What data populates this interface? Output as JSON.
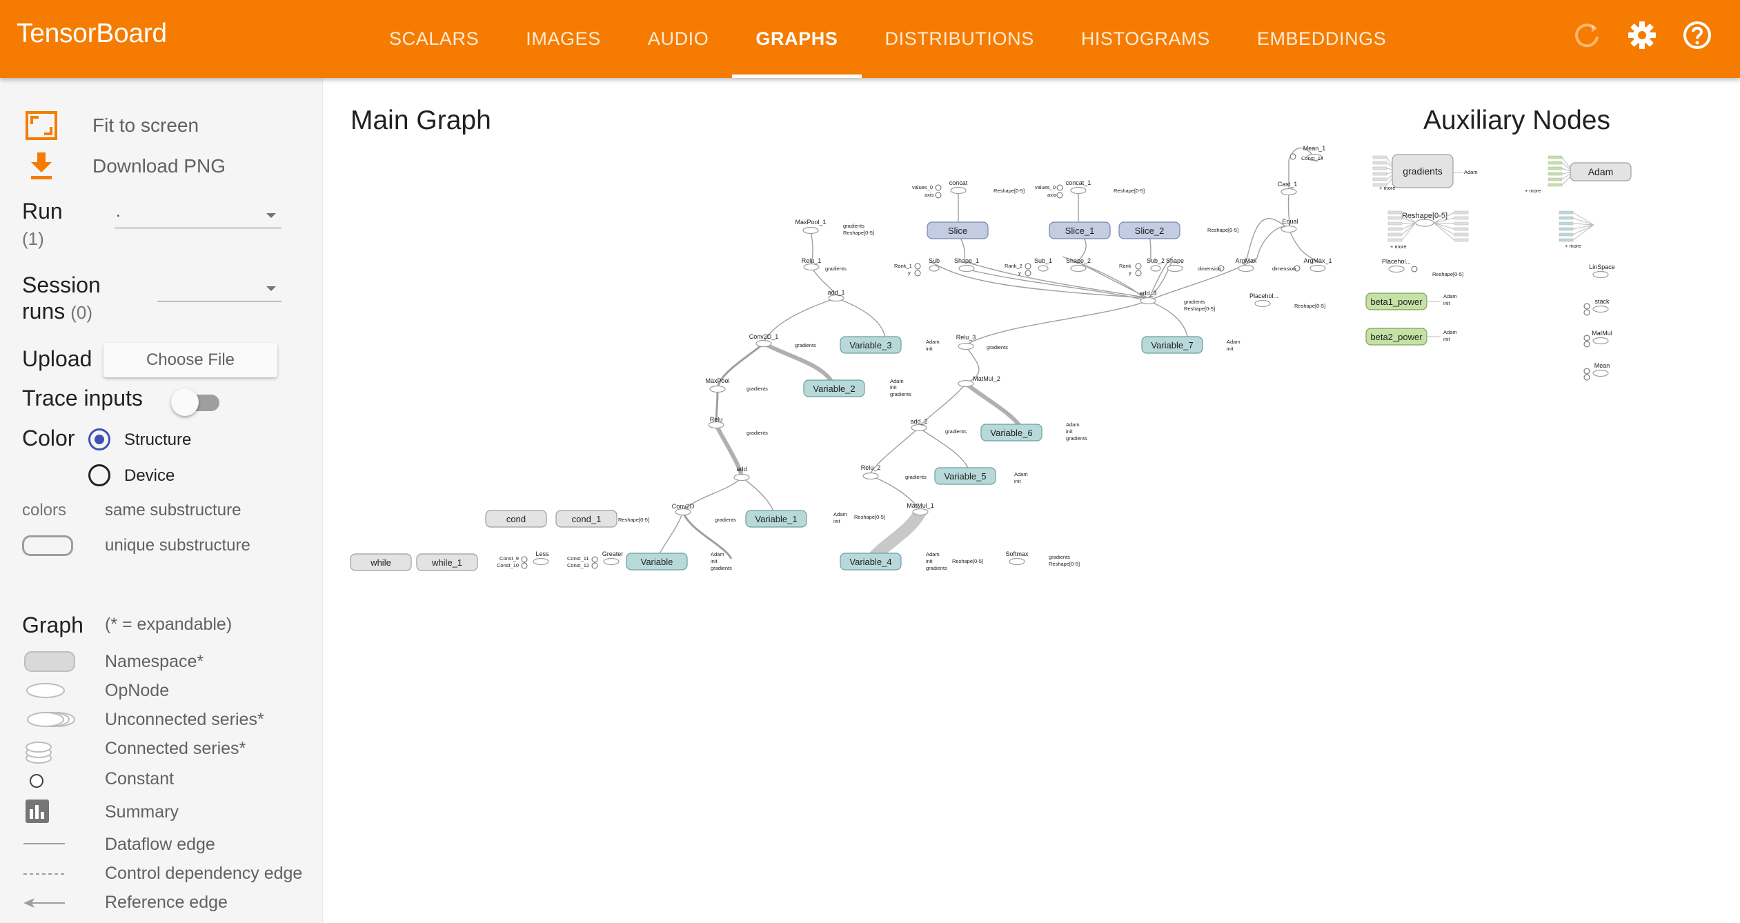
{
  "app": {
    "title": "TensorBoard",
    "tabs": [
      {
        "label": "SCALARS"
      },
      {
        "label": "IMAGES"
      },
      {
        "label": "AUDIO"
      },
      {
        "label": "GRAPHS",
        "active": true
      },
      {
        "label": "DISTRIBUTIONS"
      },
      {
        "label": "HISTOGRAMS"
      },
      {
        "label": "EMBEDDINGS"
      }
    ],
    "icons": [
      "refresh-icon",
      "settings-icon",
      "help-icon"
    ],
    "accent": "#f57c00"
  },
  "sidebar": {
    "fit_label": "Fit to screen",
    "download_label": "Download PNG",
    "run_label": "Run",
    "run_count": "(1)",
    "run_value": ".",
    "session_label": "Session",
    "session_label2": "runs",
    "session_count": "(0)",
    "upload_label": "Upload",
    "choose_file": "Choose File",
    "trace_label": "Trace inputs",
    "color_label": "Color",
    "color_structure": "Structure",
    "color_device": "Device",
    "colors_label": "colors",
    "same_sub": "same substructure",
    "unique_sub": "unique substructure",
    "graph_label": "Graph",
    "graph_hint": "(* = expandable)",
    "legend": {
      "namespace": "Namespace*",
      "opnode": "OpNode",
      "unconnected": "Unconnected series*",
      "connected": "Connected series*",
      "constant": "Constant",
      "summary": "Summary",
      "dataflow": "Dataflow edge",
      "control": "Control dependency edge",
      "reference": "Reference edge"
    }
  },
  "graph": {
    "main_title": "Main Graph",
    "aux_title": "Auxiliary Nodes",
    "variables": [
      "Variable",
      "Variable_1",
      "Variable_2",
      "Variable_3",
      "Variable_4",
      "Variable_5",
      "Variable_6",
      "Variable_7"
    ],
    "namespaces": [
      "while",
      "while_1",
      "cond",
      "cond_1",
      "gradients",
      "Adam"
    ],
    "slices": [
      "Slice",
      "Slice_1",
      "Slice_2"
    ],
    "aux_green": [
      "beta1_power",
      "beta2_power"
    ],
    "ops": [
      "MaxPool_1",
      "Relu_1",
      "add_1",
      "Conv2D_1",
      "MaxPool",
      "Relu",
      "add",
      "Conv2D",
      "Relu_3",
      "MatMul_2",
      "add_2",
      "Relu_2",
      "MatMul_1",
      "Softmax",
      "Less",
      "Greater",
      "concat",
      "concat_1",
      "Sub",
      "Shape_1",
      "Sub_1",
      "Shape_2",
      "Sub_2",
      "Shape",
      "ArgMax",
      "ArgMax_1",
      "Equal",
      "Cast_1",
      "Mean_1",
      "add_3",
      "Placehol...",
      "Reshape[0-5]",
      "LinSpace",
      "stack",
      "MatMul",
      "Mean",
      "Placehol..."
    ],
    "small_labels": {
      "gradients": "gradients",
      "reshape": "Reshape[0-5]",
      "adam": "Adam",
      "init": "init",
      "const14": "Const_14",
      "values0": "values_0",
      "axis": "axis",
      "rank1": "Rank_1",
      "rank2": "Rank_2",
      "rank": "Rank",
      "y": "y",
      "dimension": "dimension",
      "const9": "Const_9",
      "const10": "Const_10",
      "const11": "Const_11",
      "const12": "Const_12",
      "more": "+ more"
    }
  }
}
